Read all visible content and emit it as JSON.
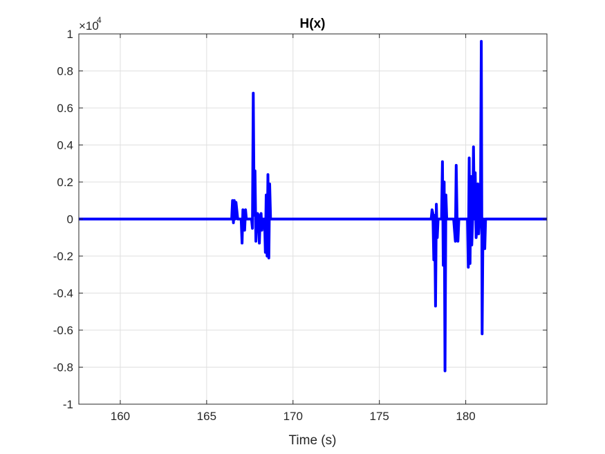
{
  "chart_data": {
    "type": "line",
    "title": "H(x)",
    "xlabel": "Time (s)",
    "ylabel": "",
    "xlim": [
      157.6,
      184.7
    ],
    "ylim": [
      -10000,
      10000
    ],
    "xticks": [
      160,
      165,
      170,
      175,
      180
    ],
    "yticks": [
      -10000,
      -8000,
      -6000,
      -4000,
      -2000,
      0,
      2000,
      4000,
      6000,
      8000,
      10000
    ],
    "ytick_labels": [
      "-1",
      "-0.8",
      "-0.6",
      "-0.4",
      "-0.2",
      "0",
      "0.2",
      "0.4",
      "0.6",
      "0.8",
      "1"
    ],
    "y_exponent": {
      "base": "×10",
      "power": "4"
    },
    "grid": true,
    "series": [
      {
        "color": "#0000ff",
        "x": [
          157.6,
          166.45,
          166.5,
          166.55,
          166.6,
          166.65,
          166.7,
          166.8,
          166.9,
          167.0,
          167.05,
          167.1,
          167.15,
          167.2,
          167.25,
          167.3,
          167.35,
          167.4,
          167.5,
          167.6,
          167.65,
          167.7,
          167.75,
          167.8,
          167.85,
          167.9,
          167.95,
          168.0,
          168.05,
          168.1,
          168.15,
          168.2,
          168.25,
          168.3,
          168.35,
          168.4,
          168.45,
          168.5,
          168.55,
          168.6,
          168.65,
          168.7,
          177.9,
          178.0,
          178.05,
          178.1,
          178.15,
          178.2,
          178.25,
          178.3,
          178.35,
          178.4,
          178.5,
          178.6,
          178.65,
          178.7,
          178.75,
          178.8,
          178.85,
          178.9,
          178.95,
          179.0,
          179.1,
          179.2,
          179.3,
          179.4,
          179.45,
          179.5,
          179.55,
          179.6,
          179.7,
          179.8,
          179.9,
          180.0,
          180.1,
          180.15,
          180.2,
          180.25,
          180.3,
          180.35,
          180.4,
          180.45,
          180.5,
          180.55,
          180.6,
          180.65,
          180.7,
          180.75,
          180.8,
          180.85,
          180.9,
          180.95,
          181.0,
          181.05,
          181.1,
          181.15,
          181.2,
          181.25,
          181.3,
          181.35,
          184.7
        ],
        "y": [
          0,
          0,
          1000,
          -200,
          1000,
          0,
          900,
          0,
          0,
          0,
          -1300,
          500,
          300,
          -600,
          500,
          0,
          0,
          0,
          0,
          0,
          -500,
          6800,
          200,
          2600,
          -1200,
          0,
          300,
          200,
          -1300,
          0,
          300,
          -600,
          0,
          0,
          0,
          -1800,
          1300,
          -2000,
          2400,
          -2100,
          1900,
          0,
          0,
          0,
          500,
          300,
          -2200,
          200,
          -4700,
          800,
          -1000,
          0,
          0,
          0,
          3100,
          -2500,
          2000,
          -8200,
          1300,
          0,
          0,
          0,
          0,
          0,
          0,
          -1200,
          2900,
          -100,
          -1200,
          0,
          0,
          0,
          0,
          0,
          0,
          -2600,
          3300,
          -2400,
          2300,
          -1400,
          0,
          3900,
          0,
          2500,
          -1000,
          -500,
          1900,
          -800,
          0,
          0,
          9600,
          -6200,
          0,
          0,
          -1600,
          0,
          0,
          0,
          0,
          0,
          0
        ]
      }
    ]
  }
}
